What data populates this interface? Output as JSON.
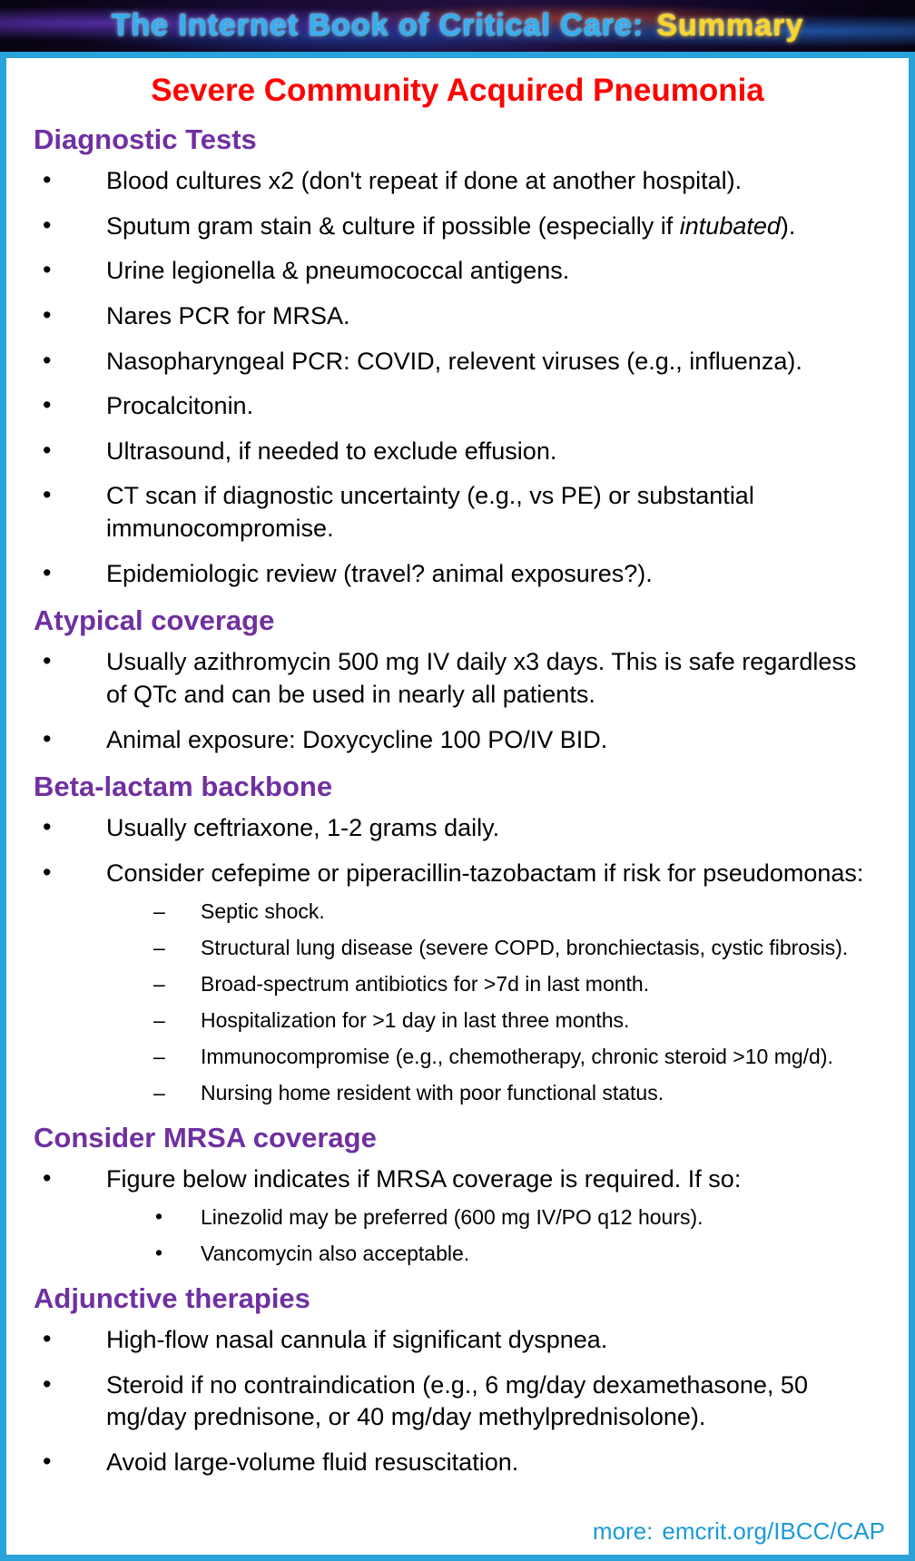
{
  "banner": {
    "title_main": "The Internet Book of Critical Care:",
    "title_accent": "Summary"
  },
  "page": {
    "title": "Severe Community Acquired Pneumonia"
  },
  "colors": {
    "frame_border": "#2aa2da",
    "title_red": "#ff0000",
    "heading_purple": "#7030a0",
    "link_blue": "#1b9ad6"
  },
  "sections": [
    {
      "heading": "Diagnostic Tests",
      "items": [
        {
          "text": "Blood cultures x2 (don't repeat if done at another hospital)."
        },
        {
          "pre": "Sputum gram stain & culture if possible (especially if ",
          "italic": "intubated",
          "post": ")."
        },
        {
          "text": "Urine legionella & pneumococcal antigens."
        },
        {
          "text": "Nares PCR for MRSA."
        },
        {
          "text": "Nasopharyngeal PCR: COVID, relevent viruses (e.g., influenza)."
        },
        {
          "text": "Procalcitonin."
        },
        {
          "text": "Ultrasound, if needed to exclude effusion."
        },
        {
          "text": "CT scan if diagnostic uncertainty (e.g., vs PE) or substantial immunocompromise."
        },
        {
          "text": "Epidemiologic review (travel? animal exposures?)."
        }
      ]
    },
    {
      "heading": "Atypical coverage",
      "items": [
        {
          "text": "Usually azithromycin 500 mg IV daily x3 days.  This is safe regardless of QTc and can be used in nearly all patients."
        },
        {
          "text": "Animal exposure:  Doxycycline 100 PO/IV BID."
        }
      ]
    },
    {
      "heading": "Beta-lactam backbone",
      "items": [
        {
          "text": "Usually ceftriaxone, 1-2 grams daily."
        },
        {
          "text": "Consider cefepime or piperacillin-tazobactam if risk for pseudomonas:",
          "sub": [
            "Septic shock.",
            "Structural lung disease (severe COPD, bronchiectasis, cystic fibrosis).",
            "Broad-spectrum antibiotics for >7d in last month.",
            "Hospitalization for >1 day in last three months.",
            "Immunocompromise (e.g., chemotherapy, chronic steroid >10 mg/d).",
            "Nursing home resident with poor functional status."
          ]
        }
      ]
    },
    {
      "heading": "Consider MRSA coverage",
      "items": [
        {
          "text": "Figure below indicates if MRSA coverage is required.  If so:",
          "sub": [
            "Linezolid may be preferred (600 mg IV/PO q12 hours).",
            "Vancomycin also acceptable."
          ]
        }
      ]
    },
    {
      "heading": "Adjunctive therapies",
      "items": [
        {
          "text": "High-flow nasal cannula if significant dyspnea."
        },
        {
          "text": "Steroid if no contraindication (e.g., 6 mg/day dexamethasone, 50 mg/day prednisone, or 40 mg/day methylprednisolone)."
        },
        {
          "text": "Avoid large-volume fluid resuscitation."
        }
      ]
    }
  ],
  "footer": {
    "label": "more:",
    "link": "emcrit.org/IBCC/CAP"
  }
}
